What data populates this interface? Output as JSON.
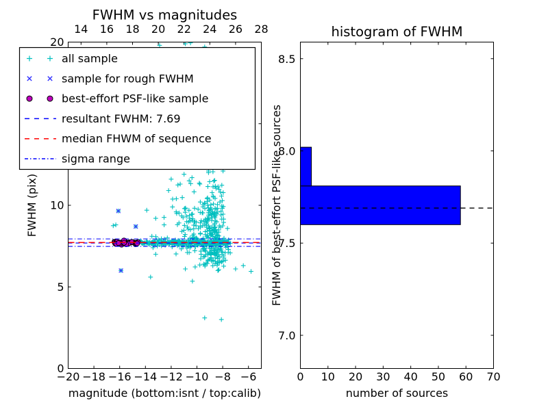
{
  "figure": {
    "background": "#ffffff"
  },
  "chart_data": [
    {
      "id": "fwhm_vs_magnitudes",
      "type": "scatter",
      "title": "FWHM vs magnitudes",
      "xlabel": "magnitude (bottom:isnt / top:calib)",
      "ylabel": "FWHM (pix)",
      "xlim": [
        -20,
        -5
      ],
      "ylim": [
        0,
        20
      ],
      "top_axis": {
        "lim": [
          13,
          28
        ],
        "ticks": [
          14,
          16,
          18,
          20,
          22,
          24,
          26,
          28
        ],
        "tick_labels": [
          "14",
          "16",
          "18",
          "20",
          "22",
          "24",
          "26",
          "28"
        ]
      },
      "bottom_ticks": [
        -20,
        -18,
        -16,
        -14,
        -12,
        -10,
        -8,
        -6
      ],
      "bottom_tick_labels": [
        "−20",
        "−18",
        "−16",
        "−14",
        "−12",
        "−10",
        "−8",
        "−6"
      ],
      "y_ticks": [
        0,
        5,
        10,
        15,
        20
      ],
      "y_tick_labels": [
        "0",
        "5",
        "10",
        "15",
        "20"
      ],
      "grid": false,
      "legend": {
        "position": "upper left",
        "entries": [
          {
            "label": "all sample",
            "type": "marker",
            "marker": "plus",
            "color": "#00bfbf"
          },
          {
            "label": "sample for rough FWHM",
            "type": "marker",
            "marker": "cross",
            "color": "#3333ff"
          },
          {
            "label": "best-effort PSF-like sample",
            "type": "marker",
            "marker": "circle",
            "color": "#bf00bf",
            "edge": "#000000"
          },
          {
            "label": "resultant FWHM: 7.69",
            "type": "line",
            "dash": "dashed",
            "color": "#0000ff"
          },
          {
            "label": "median FHWM of sequence",
            "type": "line",
            "dash": "dashed",
            "color": "#ff0000"
          },
          {
            "label": "sigma range",
            "type": "line",
            "dash": "dashdot",
            "color": "#0000ff"
          }
        ]
      },
      "hlines": [
        {
          "name": "resultant-fwhm",
          "value": 7.69,
          "color": "#0000ff",
          "dash": "6 5",
          "width": 1.2
        },
        {
          "name": "median-fwhm",
          "value": 7.72,
          "color": "#ff0000",
          "dash": "9 6",
          "width": 1.6
        },
        {
          "name": "sigma-upper",
          "value": 7.94,
          "color": "#0000ff",
          "dash": "6.5 3 1.2 3",
          "width": 1.1
        },
        {
          "name": "sigma-lower",
          "value": 7.48,
          "color": "#0000ff",
          "dash": "6.5 3 1.2 3",
          "width": 1.1
        }
      ],
      "series": {
        "all_sample": {
          "marker": "plus",
          "color": "#00bfbf",
          "clusters": [
            {
              "name": "tight-band",
              "type": "uniform-x",
              "mag_range": [
                -14.6,
                -7.4
              ],
              "fwhm_mean": 7.7,
              "fwhm_sd": 0.055,
              "n": 240
            },
            {
              "name": "loose-band",
              "type": "uniform-x",
              "mag_range": [
                -13.6,
                -7.5
              ],
              "fwhm_mean": 7.7,
              "fwhm_sd": 0.13,
              "n": 110
            },
            {
              "name": "fan-column",
              "type": "normal",
              "mag_mean": -8.8,
              "mag_sd": 0.45,
              "fwhm_mean": 8.8,
              "fwhm_sd": 1.35,
              "mag_clip": [
                -12.5,
                -7.35
              ],
              "fwhm_clip": [
                6.0,
                12.1
              ],
              "n": 170
            },
            {
              "name": "fan-mid",
              "type": "normal",
              "mag_mean": -9.8,
              "mag_sd": 0.85,
              "fwhm_mean": 8.15,
              "fwhm_sd": 0.8,
              "mag_clip": [
                -12.6,
                -7.4
              ],
              "fwhm_clip": [
                6.3,
                11.2
              ],
              "n": 90
            },
            {
              "name": "fan-below",
              "type": "normal",
              "mag_mean": -8.6,
              "mag_sd": 0.55,
              "fwhm_mean": 6.9,
              "fwhm_sd": 0.5,
              "mag_clip": [
                -10.6,
                -7.3
              ],
              "fwhm_clip": [
                5.7,
                7.6
              ],
              "n": 50
            },
            {
              "name": "upper-sparse",
              "type": "normal",
              "mag_mean": -10.9,
              "mag_sd": 1.1,
              "fwhm_mean": 9.9,
              "fwhm_sd": 0.95,
              "mag_clip": [
                -13.0,
                -8.2
              ],
              "fwhm_clip": [
                8.4,
                12.0
              ],
              "n": 30
            }
          ],
          "points": [
            [
              -12.9,
              19.8
            ],
            [
              -10.9,
              19.9
            ],
            [
              -10.5,
              19.95
            ],
            [
              -9.4,
              19.7
            ],
            [
              -16.5,
              8.75
            ],
            [
              -16.3,
              8.8
            ],
            [
              -16.1,
              9.65
            ],
            [
              -14.75,
              8.7
            ],
            [
              -15.9,
              6.0
            ],
            [
              -13.9,
              9.7
            ],
            [
              -13.2,
              9.2
            ],
            [
              -13.5,
              8.1
            ],
            [
              -13.2,
              7.0
            ],
            [
              -12.55,
              8.8
            ],
            [
              -12.2,
              10.9
            ],
            [
              -11.9,
              9.9
            ],
            [
              -11.6,
              10.4
            ],
            [
              -11.3,
              11.3
            ],
            [
              -12.0,
              11.6
            ],
            [
              -11.0,
              11.9
            ],
            [
              -10.6,
              11.5
            ],
            [
              -13.6,
              5.6
            ],
            [
              -10.9,
              6.1
            ],
            [
              -10.35,
              5.35
            ],
            [
              -9.4,
              3.1
            ],
            [
              -8.1,
              3.0
            ],
            [
              -7.0,
              6.1
            ],
            [
              -5.8,
              5.95
            ],
            [
              -6.4,
              6.3
            ]
          ]
        },
        "rough_fwhm": {
          "marker": "cross",
          "color": "#3333ff",
          "points": [
            [
              -16.1,
              9.65
            ],
            [
              -14.75,
              8.7
            ],
            [
              -15.9,
              6.0
            ]
          ]
        },
        "psf_like": {
          "marker": "circle",
          "color": "#bf00bf",
          "edge": "#000000",
          "cluster": {
            "mag_range": [
              -16.45,
              -14.55
            ],
            "fwhm_mean": 7.7,
            "fwhm_sd": 0.05,
            "n": 45
          }
        }
      }
    },
    {
      "id": "fwhm_histogram",
      "type": "bar-horizontal",
      "title": "histogram of FWHM",
      "xlabel": "number of sources",
      "ylabel": "FWHM of best-effort PSF-like sources",
      "xlim": [
        0,
        70
      ],
      "ylim": [
        6.82,
        8.59
      ],
      "x_ticks": [
        0,
        10,
        20,
        30,
        40,
        50,
        60,
        70
      ],
      "x_tick_labels": [
        "0",
        "10",
        "20",
        "30",
        "40",
        "50",
        "60",
        "70"
      ],
      "y_ticks": [
        7.0,
        7.5,
        8.0,
        8.5
      ],
      "y_tick_labels": [
        "7.0",
        "7.5",
        "8.0",
        "8.5"
      ],
      "grid": false,
      "bar_color": "#0000ff",
      "bar_edge": "#000000",
      "bin_edges": [
        7.6,
        7.81,
        8.02
      ],
      "counts": [
        58,
        4
      ],
      "bars": [
        {
          "from": 7.6,
          "to": 7.81,
          "count": 58
        },
        {
          "from": 7.81,
          "to": 8.02,
          "count": 4
        }
      ],
      "median_line": {
        "value": 7.69,
        "color": "#000000",
        "dash": "7 6",
        "width": 1.3
      }
    }
  ]
}
